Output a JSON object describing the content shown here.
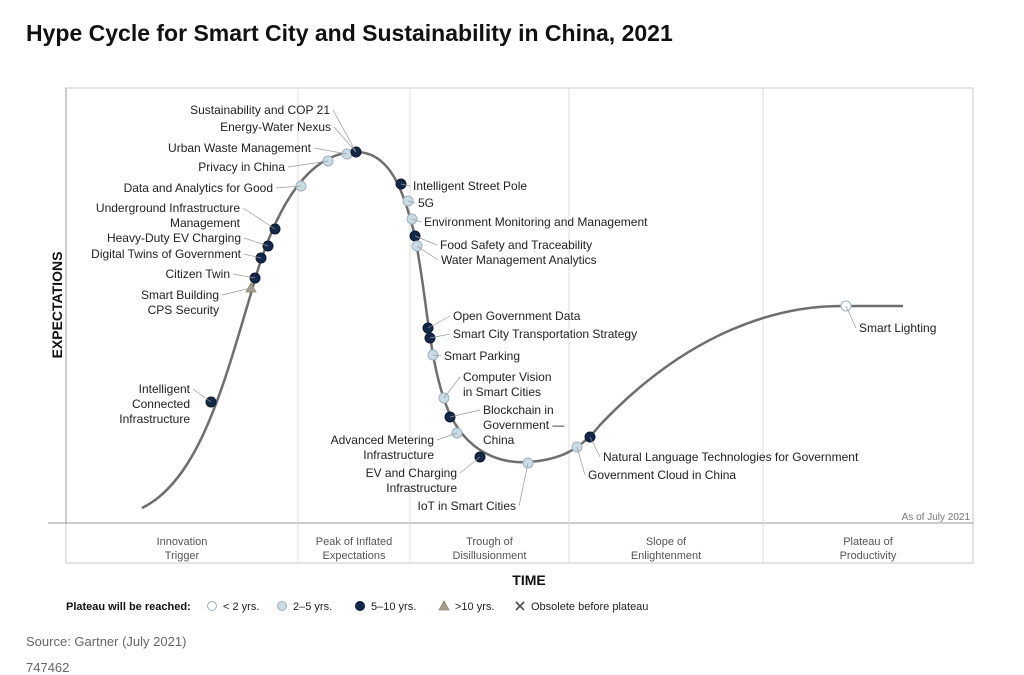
{
  "chart_data": {
    "type": "line",
    "title": "Hype Cycle for Smart City and Sustainability in China, 2021",
    "xlabel": "TIME",
    "ylabel": "EXPECTATIONS",
    "as_of": "As of July 2021",
    "phases": [
      {
        "label": [
          "Innovation",
          "Trigger"
        ]
      },
      {
        "label": [
          "Peak of Inflated",
          "Expectations"
        ]
      },
      {
        "label": [
          "Trough of",
          "Disillusionment"
        ]
      },
      {
        "label": [
          "Slope of",
          "Enlightenment"
        ]
      },
      {
        "label": [
          "Plateau of",
          "Productivity"
        ]
      }
    ],
    "legend": {
      "title": "Plateau will be reached:",
      "items": [
        {
          "key": "lt2",
          "label": "< 2 yrs.",
          "color": "#ffffff"
        },
        {
          "key": "2to5",
          "label": "2–5 yrs.",
          "color": "#c9dce6"
        },
        {
          "key": "5to10",
          "label": "5–10 yrs.",
          "color": "#14284a"
        },
        {
          "key": "gt10",
          "label": ">10 yrs.",
          "color": "#a59f8a"
        },
        {
          "key": "obsolete",
          "label": "Obsolete before plateau",
          "color": "#555555"
        }
      ]
    },
    "technologies": [
      {
        "label": [
          "Intelligent",
          "Connected",
          "Infrastructure"
        ],
        "status": "5to10"
      },
      {
        "label": [
          "Smart Building",
          "CPS Security"
        ],
        "status": "gt10"
      },
      {
        "label": [
          "Citizen Twin"
        ],
        "status": "5to10"
      },
      {
        "label": [
          "Digital Twins of Government"
        ],
        "status": "5to10"
      },
      {
        "label": [
          "Heavy-Duty EV Charging"
        ],
        "status": "5to10"
      },
      {
        "label": [
          "Underground Infrastructure",
          "Management"
        ],
        "status": "5to10"
      },
      {
        "label": [
          "Data and Analytics for Good"
        ],
        "status": "2to5"
      },
      {
        "label": [
          "Privacy in China"
        ],
        "status": "2to5"
      },
      {
        "label": [
          "Urban Waste Management"
        ],
        "status": "2to5"
      },
      {
        "label": [
          "Energy-Water Nexus"
        ],
        "status": "5to10"
      },
      {
        "label": [
          "Sustainability and COP 21"
        ],
        "status": "5to10"
      },
      {
        "label": [
          "Intelligent Street Pole"
        ],
        "status": "5to10"
      },
      {
        "label": [
          "5G"
        ],
        "status": "2to5"
      },
      {
        "label": [
          "Environment Monitoring and Management"
        ],
        "status": "2to5"
      },
      {
        "label": [
          "Food Safety and Traceability"
        ],
        "status": "5to10"
      },
      {
        "label": [
          "Water Management Analytics"
        ],
        "status": "2to5"
      },
      {
        "label": [
          "Open Government Data"
        ],
        "status": "5to10"
      },
      {
        "label": [
          "Smart City Transportation Strategy"
        ],
        "status": "5to10"
      },
      {
        "label": [
          "Smart Parking"
        ],
        "status": "2to5"
      },
      {
        "label": [
          "Computer Vision",
          "in Smart Cities"
        ],
        "status": "2to5"
      },
      {
        "label": [
          "Blockchain in",
          "Government —",
          "China"
        ],
        "status": "5to10"
      },
      {
        "label": [
          "Advanced Metering",
          "Infrastructure"
        ],
        "status": "2to5"
      },
      {
        "label": [
          "EV and Charging",
          "Infrastructure"
        ],
        "status": "5to10"
      },
      {
        "label": [
          "IoT in Smart Cities"
        ],
        "status": "2to5"
      },
      {
        "label": [
          "Government Cloud in China"
        ],
        "status": "2to5"
      },
      {
        "label": [
          "Natural Language Technologies for Government"
        ],
        "status": "5to10"
      },
      {
        "label": [
          "Smart Lighting"
        ],
        "status": "lt2"
      }
    ]
  },
  "footer": {
    "source": "Source: Gartner (July 2021)",
    "id": "747462"
  }
}
